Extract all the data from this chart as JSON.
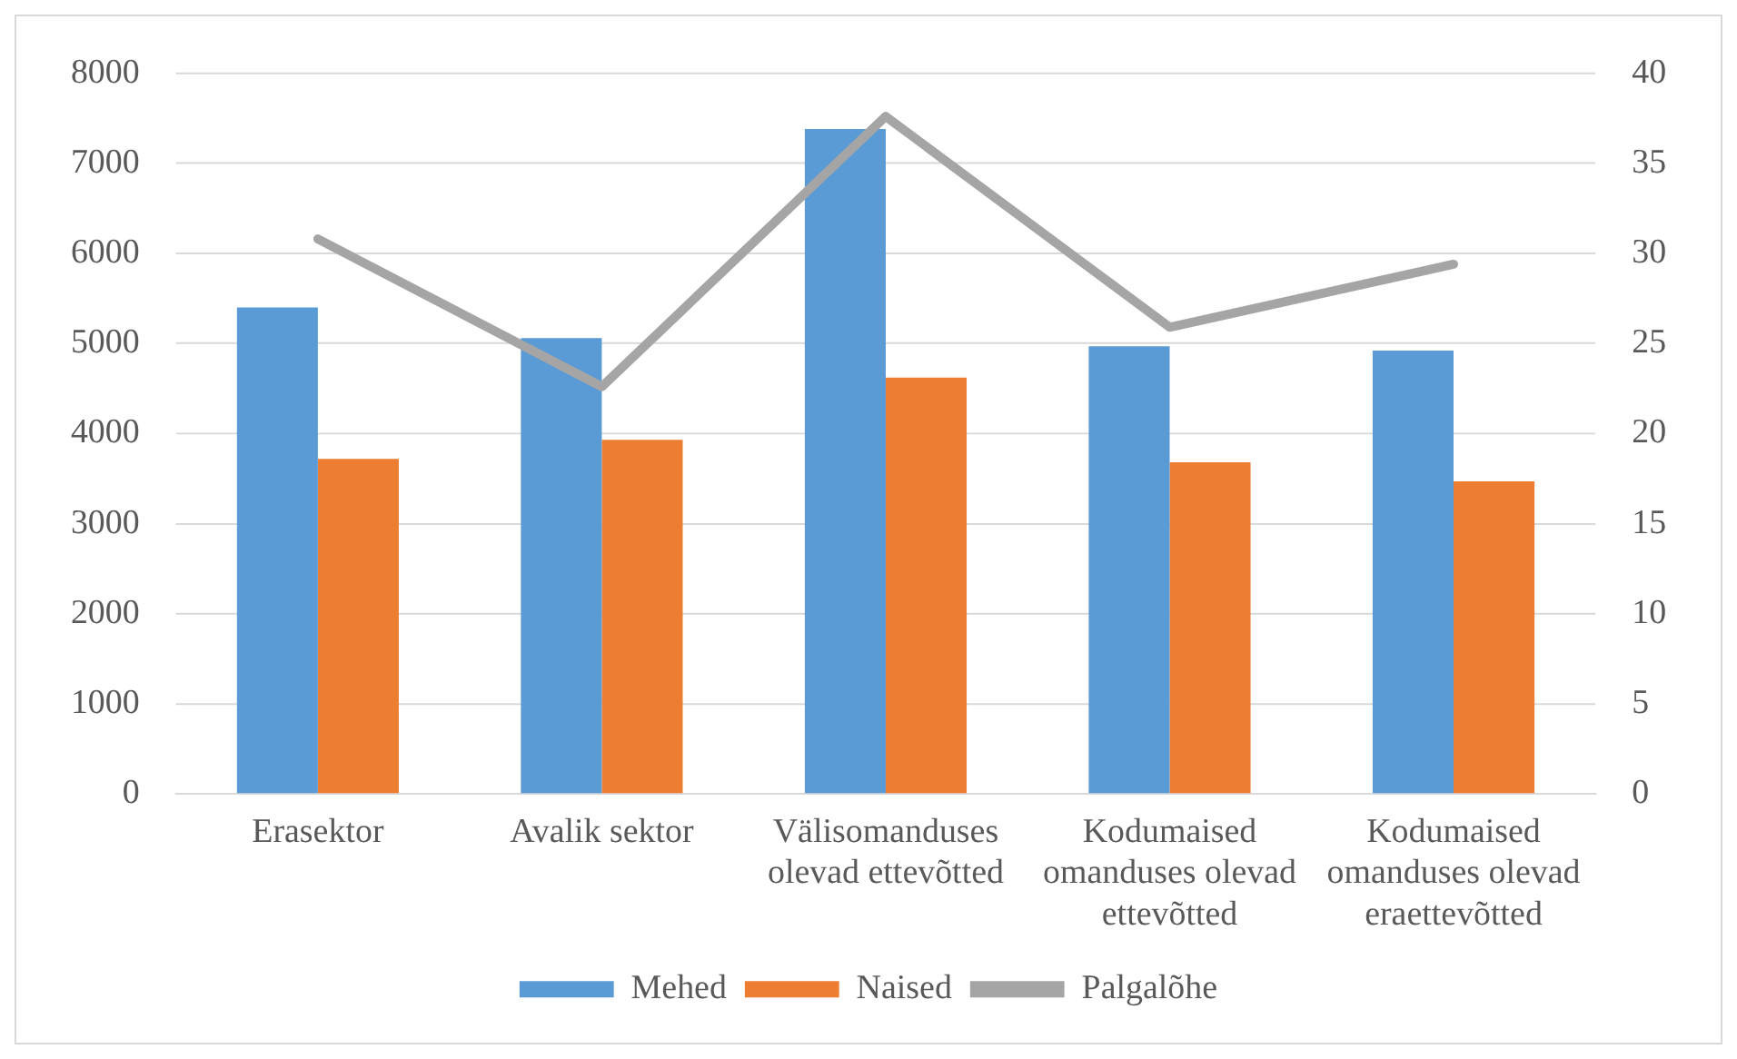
{
  "chart_data": {
    "type": "bar",
    "categories": [
      "Erasektor",
      "Avalik sektor",
      "Välisomanduses olevad ettevõtted",
      "Kodumaised omanduses olevad ettevõtted",
      "Kodumaised omanduses olevad eraettevõtted"
    ],
    "series": [
      {
        "name": "Mehed",
        "color": "#5b9bd5",
        "values": [
          5400,
          5060,
          7380,
          4970,
          4920
        ]
      },
      {
        "name": "Naised",
        "color": "#ed7d31",
        "values": [
          3720,
          3930,
          4620,
          3680,
          3470
        ]
      },
      {
        "name": "Palgalõhe",
        "type": "line",
        "axis": "y2",
        "color": "#a5a5a5",
        "values": [
          30.8,
          22.6,
          37.6,
          25.9,
          29.4
        ]
      }
    ],
    "ylim": [
      0,
      8000
    ],
    "yticks": [
      0,
      1000,
      2000,
      3000,
      4000,
      5000,
      6000,
      7000,
      8000
    ],
    "y2lim": [
      0,
      40
    ],
    "y2ticks": [
      0,
      5,
      10,
      15,
      20,
      25,
      30,
      35,
      40
    ],
    "grid": "y",
    "legend": "bottom",
    "marker": "none"
  }
}
